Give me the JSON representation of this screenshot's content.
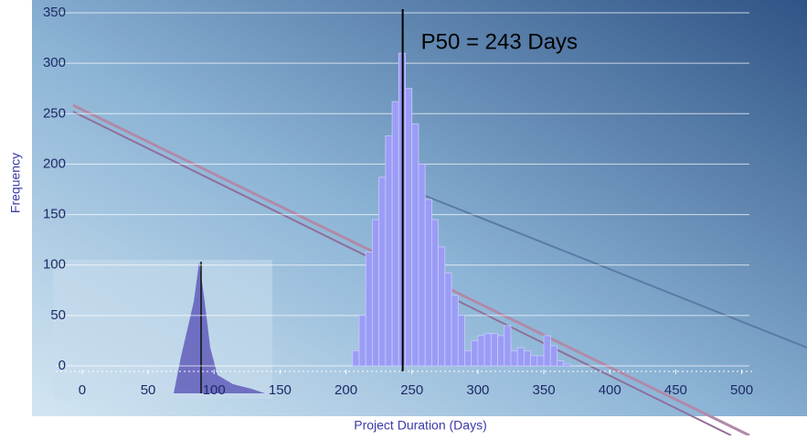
{
  "chart_data": {
    "type": "histogram",
    "x_label": "Project Duration (Days)",
    "y_label": "Frequency",
    "bins": [
      205,
      210,
      215,
      220,
      225,
      230,
      235,
      240,
      245,
      250,
      255,
      260,
      265,
      270,
      275,
      280,
      285,
      290,
      295,
      300,
      305,
      310,
      315,
      320,
      325,
      330,
      335,
      340,
      345,
      350,
      355,
      360,
      365,
      370
    ],
    "values": [
      15,
      50,
      113,
      145,
      187,
      228,
      262,
      310,
      275,
      240,
      200,
      165,
      145,
      118,
      92,
      70,
      50,
      15,
      25,
      30,
      32,
      32,
      30,
      40,
      15,
      18,
      15,
      10,
      10,
      30,
      20,
      5,
      2
    ],
    "color": "#9a9cf5",
    "xlim": [
      -20,
      510
    ],
    "ylim": [
      0,
      350
    ],
    "xticks": [
      0,
      50,
      100,
      150,
      200,
      250,
      300,
      350,
      400,
      450,
      500
    ],
    "yticks": [
      0,
      50,
      100,
      150,
      200,
      250,
      300,
      350
    ],
    "grid": true,
    "markers": [
      {
        "value": 243,
        "label": "P50 = 243 Days"
      }
    ]
  }
}
